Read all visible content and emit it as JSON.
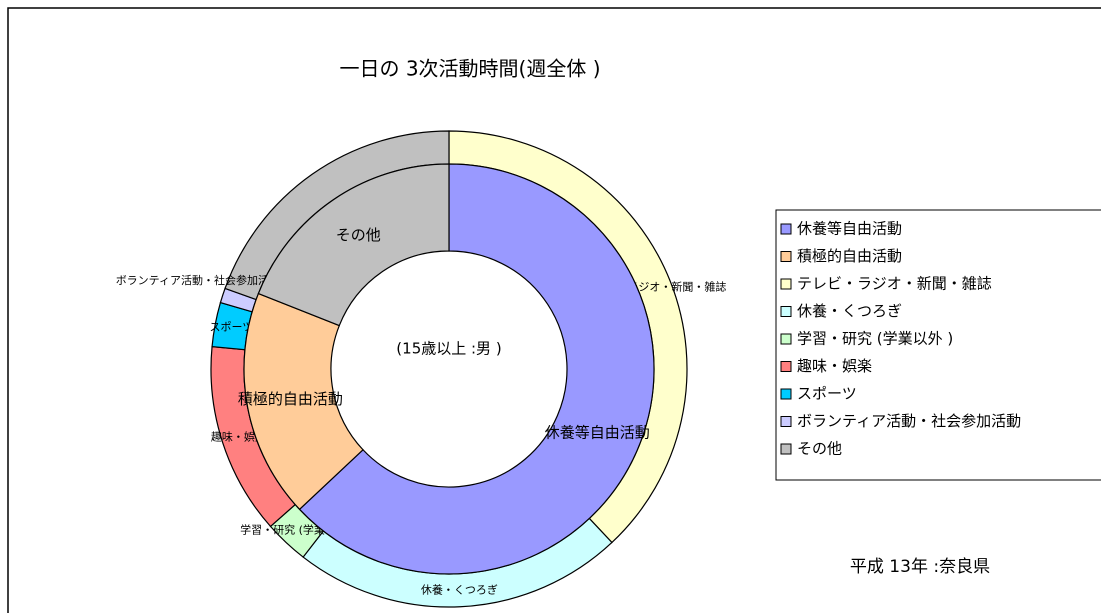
{
  "chart_data": {
    "type": "donut",
    "title": "一日の 3次活動時間(週全体 )",
    "subtitle": "(15歳以上 :男 )",
    "annotation": "平成 13年 :奈良県",
    "inner": {
      "categories": [
        "休養等自由活動",
        "積極的自由活動",
        "その他"
      ],
      "values": [
        63,
        18,
        19
      ],
      "colors": [
        "#9999ff",
        "#ffcc99",
        "#c0c0c0"
      ]
    },
    "outer": {
      "categories": [
        "テレビ・ラジオ・新聞・雑誌",
        "休養・くつろぎ",
        "学習・研究 (学業以外 )",
        "趣味・娯楽",
        "スポーツ",
        "ボランティア活動・社会参加活動",
        "その他"
      ],
      "values": [
        38,
        22.5,
        3,
        13,
        3,
        1,
        19.5
      ],
      "colors": [
        "#ffffcc",
        "#ccffff",
        "#ccffcc",
        "#ff8080",
        "#00ccff",
        "#ccccff",
        "#c0c0c0"
      ]
    },
    "legend": "right"
  }
}
